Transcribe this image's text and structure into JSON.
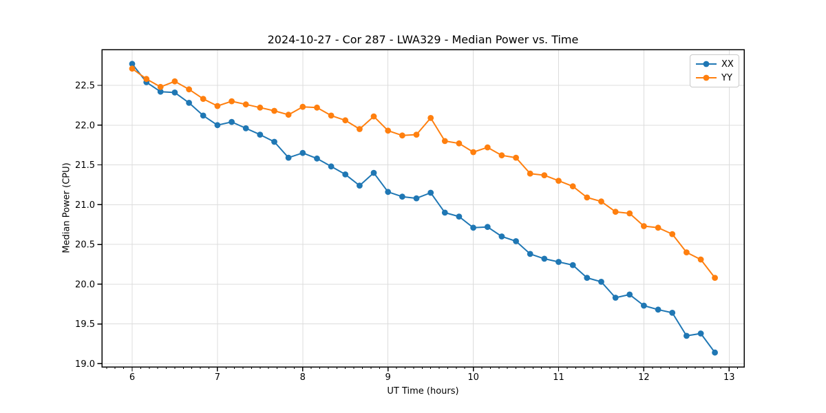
{
  "chart_data": {
    "type": "line",
    "title": "2024-10-27 - Cor 287 - LWA329 - Median Power vs. Time",
    "xlabel": "UT Time (hours)",
    "ylabel": "Median Power (CPU)",
    "xlim": [
      5.645,
      13.175
    ],
    "ylim": [
      18.96,
      22.95
    ],
    "x_major_ticks": [
      6,
      7,
      8,
      9,
      10,
      11,
      12,
      13
    ],
    "x_tick_labels": [
      "6",
      "7",
      "8",
      "9",
      "10",
      "11",
      "12",
      "13"
    ],
    "x_minor_tick_step": 0.1,
    "y_major_ticks": [
      19.0,
      19.5,
      20.0,
      20.5,
      21.0,
      21.5,
      22.0,
      22.5
    ],
    "y_tick_labels": [
      "19.0",
      "19.5",
      "20.0",
      "20.5",
      "21.0",
      "21.5",
      "22.0",
      "22.5"
    ],
    "grid": "major-only",
    "marker": "circle",
    "legend_position": "upper right",
    "colors": {
      "grid": "#dcdcdc",
      "spine": "#000000",
      "text": "#000000",
      "background": "#ffffff"
    },
    "x": [
      6.0,
      6.167,
      6.333,
      6.5,
      6.667,
      6.833,
      7.0,
      7.167,
      7.333,
      7.5,
      7.667,
      7.833,
      8.0,
      8.167,
      8.333,
      8.5,
      8.667,
      8.833,
      9.0,
      9.167,
      9.333,
      9.5,
      9.667,
      9.833,
      10.0,
      10.167,
      10.333,
      10.5,
      10.667,
      10.833,
      11.0,
      11.167,
      11.333,
      11.5,
      11.667,
      11.833,
      12.0,
      12.167,
      12.333,
      12.5,
      12.667,
      12.833
    ],
    "series": [
      {
        "name": "XX",
        "color": "#1f77b4",
        "values": [
          22.77,
          22.54,
          22.42,
          22.41,
          22.28,
          22.12,
          22.0,
          22.04,
          21.96,
          21.88,
          21.79,
          21.59,
          21.65,
          21.58,
          21.48,
          21.38,
          21.24,
          21.4,
          21.16,
          21.1,
          21.08,
          21.15,
          20.9,
          20.85,
          20.71,
          20.72,
          20.6,
          20.54,
          20.38,
          20.32,
          20.28,
          20.24,
          20.08,
          20.03,
          19.83,
          19.87,
          19.73,
          19.68,
          19.64,
          19.35,
          19.38,
          19.14
        ]
      },
      {
        "name": "YY",
        "color": "#ff7f0e",
        "values": [
          22.71,
          22.58,
          22.48,
          22.55,
          22.45,
          22.33,
          22.24,
          22.3,
          22.26,
          22.22,
          22.18,
          22.13,
          22.23,
          22.22,
          22.12,
          22.06,
          21.95,
          22.11,
          21.93,
          21.87,
          21.88,
          22.09,
          21.8,
          21.77,
          21.66,
          21.72,
          21.62,
          21.59,
          21.39,
          21.37,
          21.3,
          21.23,
          21.09,
          21.04,
          20.91,
          20.89,
          20.73,
          20.71,
          20.63,
          20.4,
          20.31,
          20.08
        ]
      }
    ]
  }
}
